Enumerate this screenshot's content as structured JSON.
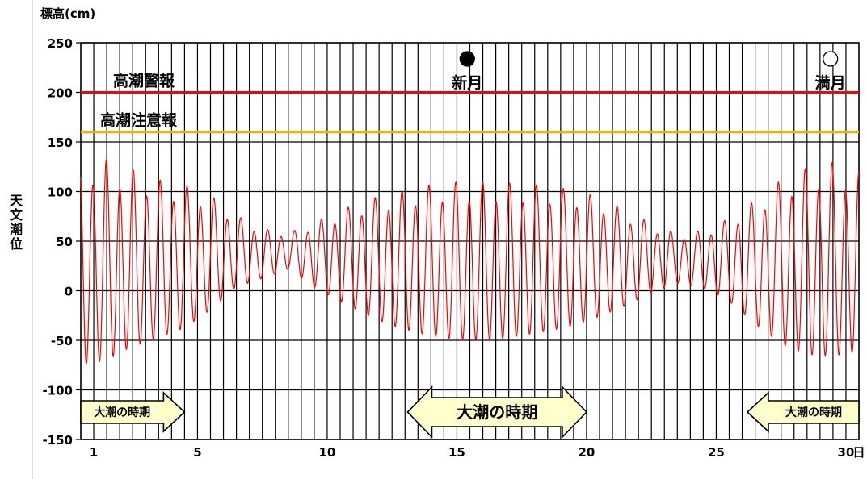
{
  "chart_data": {
    "type": "line",
    "unit_label": "標高(cm)",
    "ylabel": "天文潮位",
    "ylim": [
      -150,
      250
    ],
    "yticks": [
      250,
      200,
      150,
      100,
      50,
      0,
      -50,
      -100,
      -150
    ],
    "xlim": [
      0.5,
      30.5
    ],
    "xticks": [
      1,
      5,
      10,
      15,
      20,
      25,
      30
    ],
    "x_unit": "日",
    "grid": true,
    "series": [
      {
        "color": "#ff0000",
        "envelope": [
          {
            "day": 0.5,
            "high": 130,
            "low": -85
          },
          {
            "day": 1.5,
            "high": 130,
            "low": -80
          },
          {
            "day": 2.5,
            "high": 120,
            "low": -65
          },
          {
            "day": 3.5,
            "high": 110,
            "low": -55
          },
          {
            "day": 4.5,
            "high": 105,
            "low": -45
          },
          {
            "day": 5.5,
            "high": 95,
            "low": -25
          },
          {
            "day": 6.5,
            "high": 75,
            "low": 0
          },
          {
            "day": 7.5,
            "high": 62,
            "low": 10
          },
          {
            "day": 8.5,
            "high": 58,
            "low": 20
          },
          {
            "day": 9.5,
            "high": 68,
            "low": 0
          },
          {
            "day": 10.5,
            "high": 80,
            "low": -15
          },
          {
            "day": 11.5,
            "high": 90,
            "low": -30
          },
          {
            "day": 12.5,
            "high": 97,
            "low": -42
          },
          {
            "day": 13.5,
            "high": 103,
            "low": -50
          },
          {
            "day": 14.5,
            "high": 107,
            "low": -56
          },
          {
            "day": 15.5,
            "high": 109,
            "low": -58
          },
          {
            "day": 16.5,
            "high": 108,
            "low": -57
          },
          {
            "day": 17.5,
            "high": 106,
            "low": -53
          },
          {
            "day": 18.5,
            "high": 104,
            "low": -48
          },
          {
            "day": 19.5,
            "high": 100,
            "low": -42
          },
          {
            "day": 20.5,
            "high": 93,
            "low": -32
          },
          {
            "day": 21.5,
            "high": 80,
            "low": -20
          },
          {
            "day": 22.5,
            "high": 67,
            "low": -5
          },
          {
            "day": 23.5,
            "high": 57,
            "low": 5
          },
          {
            "day": 24.5,
            "high": 60,
            "low": 0
          },
          {
            "day": 25.5,
            "high": 72,
            "low": -15
          },
          {
            "day": 26.5,
            "high": 90,
            "low": -40
          },
          {
            "day": 27.5,
            "high": 110,
            "low": -62
          },
          {
            "day": 28.5,
            "high": 122,
            "low": -74
          },
          {
            "day": 29.5,
            "high": 127,
            "low": -76
          },
          {
            "day": 30.5,
            "high": 118,
            "low": -70
          }
        ],
        "cycles_per_day": 1.93
      }
    ],
    "reference_lines": [
      {
        "label": "高潮警報",
        "y": 200,
        "color": "#ff0000"
      },
      {
        "label": "高潮注意報",
        "y": 160,
        "color": "#f0b400"
      }
    ],
    "moon_phases": [
      {
        "label": "新月",
        "x": 15.4,
        "symbol": "●"
      },
      {
        "label": "満月",
        "x": 29.4,
        "symbol": "○"
      }
    ],
    "spring_tide_periods": [
      {
        "label": "大潮の時期",
        "from": 0.5,
        "to": 4.5,
        "arrow": "right",
        "size": "small"
      },
      {
        "label": "大潮の時期",
        "from": 13.1,
        "to": 20.0,
        "arrow": "both",
        "size": "large"
      },
      {
        "label": "大潮の時期",
        "from": 26.2,
        "to": 30.5,
        "arrow": "left",
        "size": "small"
      }
    ]
  }
}
